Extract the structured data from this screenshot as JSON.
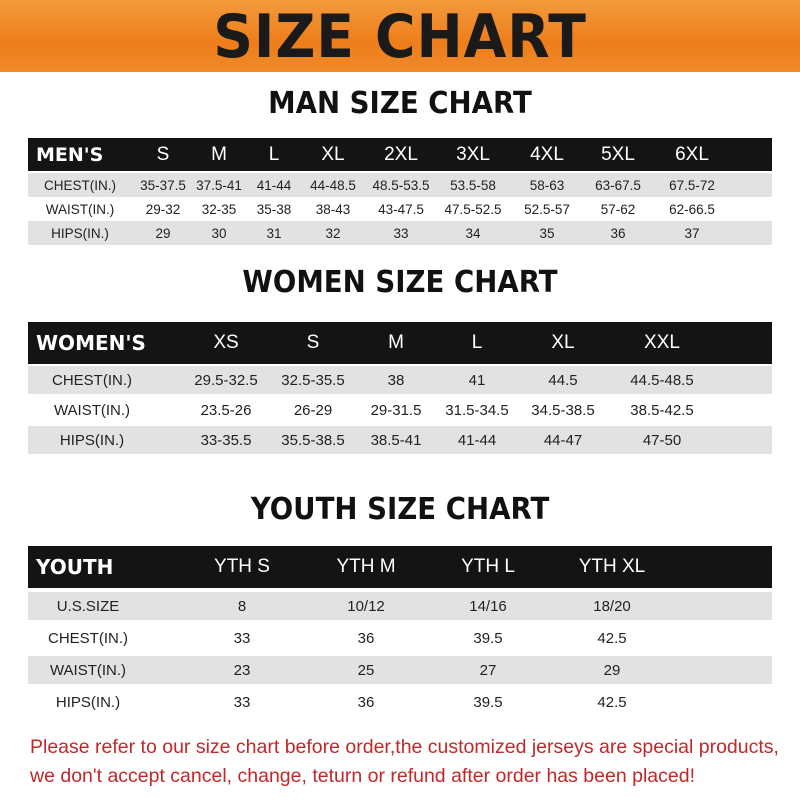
{
  "banner_title": "SIZE CHART",
  "men": {
    "title": "MAN SIZE CHART",
    "header": [
      "MEN'S",
      "S",
      "M",
      "L",
      "XL",
      "2XL",
      "3XL",
      "4XL",
      "5XL",
      "6XL"
    ],
    "rows": [
      [
        "CHEST(IN.)",
        "35-37.5",
        "37.5-41",
        "41-44",
        "44-48.5",
        "48.5-53.5",
        "53.5-58",
        "58-63",
        "63-67.5",
        "67.5-72"
      ],
      [
        "WAIST(IN.)",
        "29-32",
        "32-35",
        "35-38",
        "38-43",
        "43-47.5",
        "47.5-52.5",
        "52.5-57",
        "57-62",
        "62-66.5"
      ],
      [
        "HIPS(IN.)",
        "29",
        "30",
        "31",
        "32",
        "33",
        "34",
        "35",
        "36",
        "37"
      ]
    ]
  },
  "women": {
    "title": "WOMEN SIZE CHART",
    "header": [
      "WOMEN'S",
      "XS",
      "S",
      "M",
      "L",
      "XL",
      "XXL"
    ],
    "rows": [
      [
        "CHEST(IN.)",
        "29.5-32.5",
        "32.5-35.5",
        "38",
        "41",
        "44.5",
        "44.5-48.5"
      ],
      [
        "WAIST(IN.)",
        "23.5-26",
        "26-29",
        "29-31.5",
        "31.5-34.5",
        "34.5-38.5",
        "38.5-42.5"
      ],
      [
        "HIPS(IN.)",
        "33-35.5",
        "35.5-38.5",
        "38.5-41",
        "41-44",
        "44-47",
        "47-50"
      ]
    ]
  },
  "youth": {
    "title": "YOUTH SIZE CHART",
    "header": [
      "YOUTH",
      "YTH S",
      "YTH M",
      "YTH L",
      "YTH XL"
    ],
    "rows": [
      [
        "U.S.SIZE",
        "8",
        "10/12",
        "14/16",
        "18/20"
      ],
      [
        "CHEST(IN.)",
        "33",
        "36",
        "39.5",
        "42.5"
      ],
      [
        "WAIST(IN.)",
        "23",
        "25",
        "27",
        "29"
      ],
      [
        "HIPS(IN.)",
        "33",
        "36",
        "39.5",
        "42.5"
      ]
    ]
  },
  "footer": {
    "line1": "Please refer to our size chart before order,the customized jerseys are special products,",
    "line2": "we don't accept cancel, change, teturn or refund after order has been placed!"
  },
  "colors": {
    "banner": "#ee7d1a",
    "header_row": "#141414",
    "stripe": "#e2e2e2",
    "footer_text": "#c0282a"
  }
}
